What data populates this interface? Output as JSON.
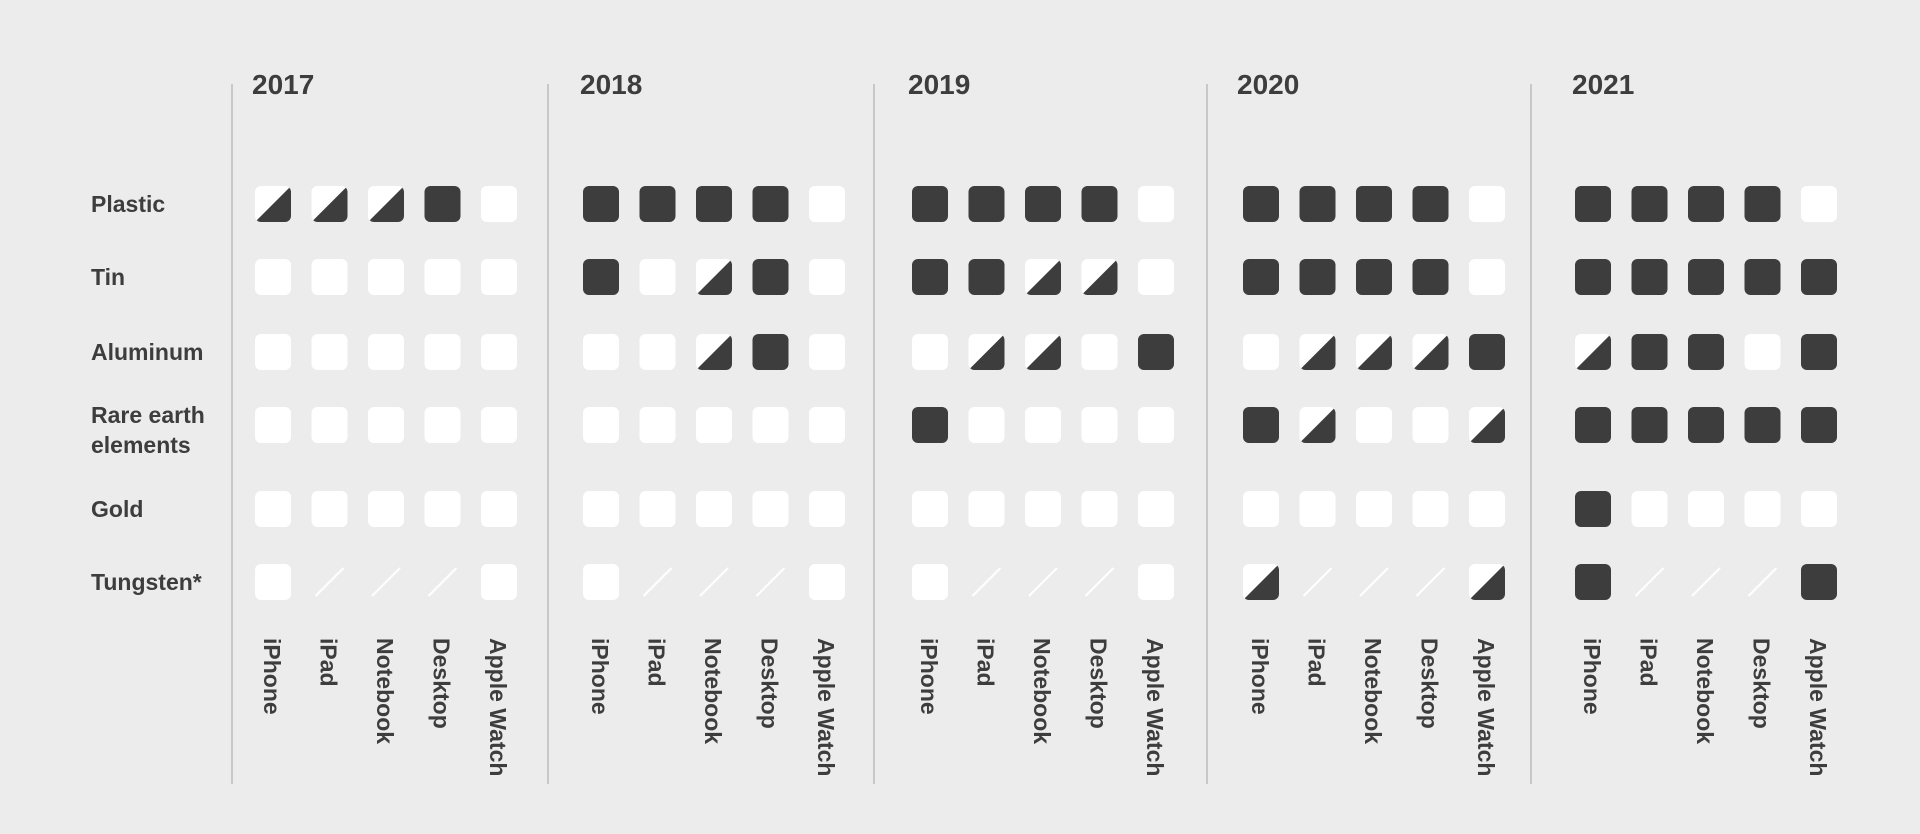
{
  "chart_data": {
    "type": "heatmap",
    "title": "",
    "encoding": {
      "full": "filled square",
      "partial": "half-filled square",
      "none": "empty square",
      "na": "diagonal line"
    },
    "colors": {
      "background": "#ececec",
      "filled": "#3d3d3d",
      "empty": "#ffffff",
      "divider": "#c8c8c8",
      "na_line": "#ffffff"
    },
    "materials": [
      "Plastic",
      "Tin",
      "Aluminum",
      "Rare earth elements",
      "Gold",
      "Tungsten*"
    ],
    "material_lines": [
      [
        "Plastic"
      ],
      [
        "Tin"
      ],
      [
        "Aluminum"
      ],
      [
        "Rare earth",
        "elements"
      ],
      [
        "Gold"
      ],
      [
        "Tungsten*"
      ]
    ],
    "devices": [
      "iPhone",
      "iPad",
      "Notebook",
      "Desktop",
      "Apple Watch"
    ],
    "years": [
      {
        "year": "2017",
        "rows": [
          [
            "partial",
            "partial",
            "partial",
            "full",
            "none"
          ],
          [
            "none",
            "none",
            "none",
            "none",
            "none"
          ],
          [
            "none",
            "none",
            "none",
            "none",
            "none"
          ],
          [
            "none",
            "none",
            "none",
            "none",
            "none"
          ],
          [
            "none",
            "none",
            "none",
            "none",
            "none"
          ],
          [
            "none",
            "na",
            "na",
            "na",
            "none"
          ]
        ]
      },
      {
        "year": "2018",
        "rows": [
          [
            "full",
            "full",
            "full",
            "full",
            "none"
          ],
          [
            "full",
            "none",
            "partial",
            "full",
            "none"
          ],
          [
            "none",
            "none",
            "partial",
            "full",
            "none"
          ],
          [
            "none",
            "none",
            "none",
            "none",
            "none"
          ],
          [
            "none",
            "none",
            "none",
            "none",
            "none"
          ],
          [
            "none",
            "na",
            "na",
            "na",
            "none"
          ]
        ]
      },
      {
        "year": "2019",
        "rows": [
          [
            "full",
            "full",
            "full",
            "full",
            "none"
          ],
          [
            "full",
            "full",
            "partial",
            "partial",
            "none"
          ],
          [
            "none",
            "partial",
            "partial",
            "none",
            "full"
          ],
          [
            "full",
            "none",
            "none",
            "none",
            "none"
          ],
          [
            "none",
            "none",
            "none",
            "none",
            "none"
          ],
          [
            "none",
            "na",
            "na",
            "na",
            "none"
          ]
        ]
      },
      {
        "year": "2020",
        "rows": [
          [
            "full",
            "full",
            "full",
            "full",
            "none"
          ],
          [
            "full",
            "full",
            "full",
            "full",
            "none"
          ],
          [
            "none",
            "partial",
            "partial",
            "partial",
            "full"
          ],
          [
            "full",
            "partial",
            "none",
            "none",
            "partial"
          ],
          [
            "none",
            "none",
            "none",
            "none",
            "none"
          ],
          [
            "partial",
            "na",
            "na",
            "na",
            "partial"
          ]
        ]
      },
      {
        "year": "2021",
        "rows": [
          [
            "full",
            "full",
            "full",
            "full",
            "none"
          ],
          [
            "full",
            "full",
            "full",
            "full",
            "full"
          ],
          [
            "partial",
            "full",
            "full",
            "none",
            "full"
          ],
          [
            "full",
            "full",
            "full",
            "full",
            "full"
          ],
          [
            "full",
            "none",
            "none",
            "none",
            "none"
          ],
          [
            "full",
            "na",
            "na",
            "na",
            "full"
          ]
        ]
      }
    ]
  }
}
